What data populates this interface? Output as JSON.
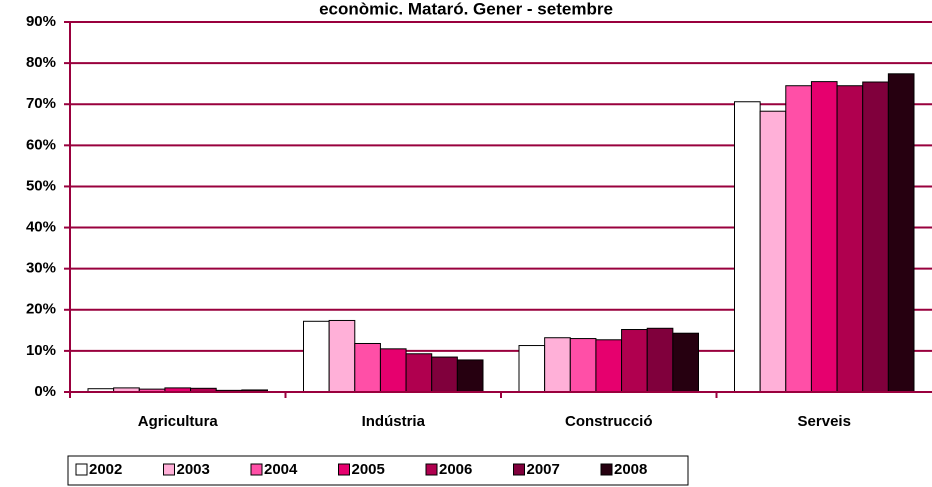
{
  "chart_data": {
    "type": "bar",
    "title": "econòmic. Mataró. Gener - setembre",
    "categories": [
      "Agricultura",
      "Indústria",
      "Construcció",
      "Serveis"
    ],
    "series": [
      {
        "name": "2002",
        "color": "#ffffff",
        "values": [
          0.8,
          17.2,
          11.3,
          70.6
        ]
      },
      {
        "name": "2003",
        "color": "#ffb0d8",
        "values": [
          1.0,
          17.4,
          13.2,
          68.3
        ]
      },
      {
        "name": "2004",
        "color": "#ff4fa7",
        "values": [
          0.7,
          11.8,
          13.0,
          74.5
        ]
      },
      {
        "name": "2005",
        "color": "#e6006e",
        "values": [
          1.0,
          10.5,
          12.7,
          75.5
        ]
      },
      {
        "name": "2006",
        "color": "#b0004f",
        "values": [
          0.9,
          9.3,
          15.2,
          74.5
        ]
      },
      {
        "name": "2007",
        "color": "#80003c",
        "values": [
          0.4,
          8.5,
          15.5,
          75.4
        ]
      },
      {
        "name": "2008",
        "color": "#260010",
        "values": [
          0.5,
          7.8,
          14.3,
          77.4
        ]
      }
    ],
    "ylim": [
      0,
      90
    ],
    "yticks": [
      {
        "value": 0,
        "label": "0%"
      },
      {
        "value": 10,
        "label": "10%"
      },
      {
        "value": 20,
        "label": "20%"
      },
      {
        "value": 30,
        "label": "30%"
      },
      {
        "value": 40,
        "label": "40%"
      },
      {
        "value": 50,
        "label": "50%"
      },
      {
        "value": 60,
        "label": "60%"
      },
      {
        "value": 70,
        "label": "70%"
      },
      {
        "value": 80,
        "label": "80%"
      },
      {
        "value": 90,
        "label": "90%"
      }
    ],
    "grid": true
  }
}
